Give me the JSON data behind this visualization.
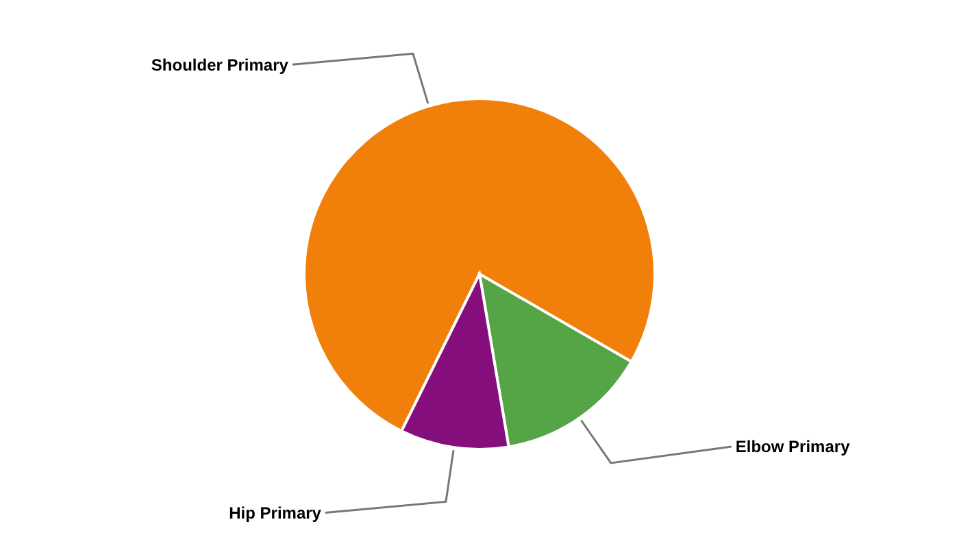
{
  "chart_data": {
    "type": "pie",
    "categories": [
      "Shoulder Primary",
      "Elbow Primary",
      "Hip Primary"
    ],
    "values": [
      76,
      14,
      10
    ],
    "colors": [
      "#f0800a",
      "#55a546",
      "#850e7d"
    ]
  }
}
